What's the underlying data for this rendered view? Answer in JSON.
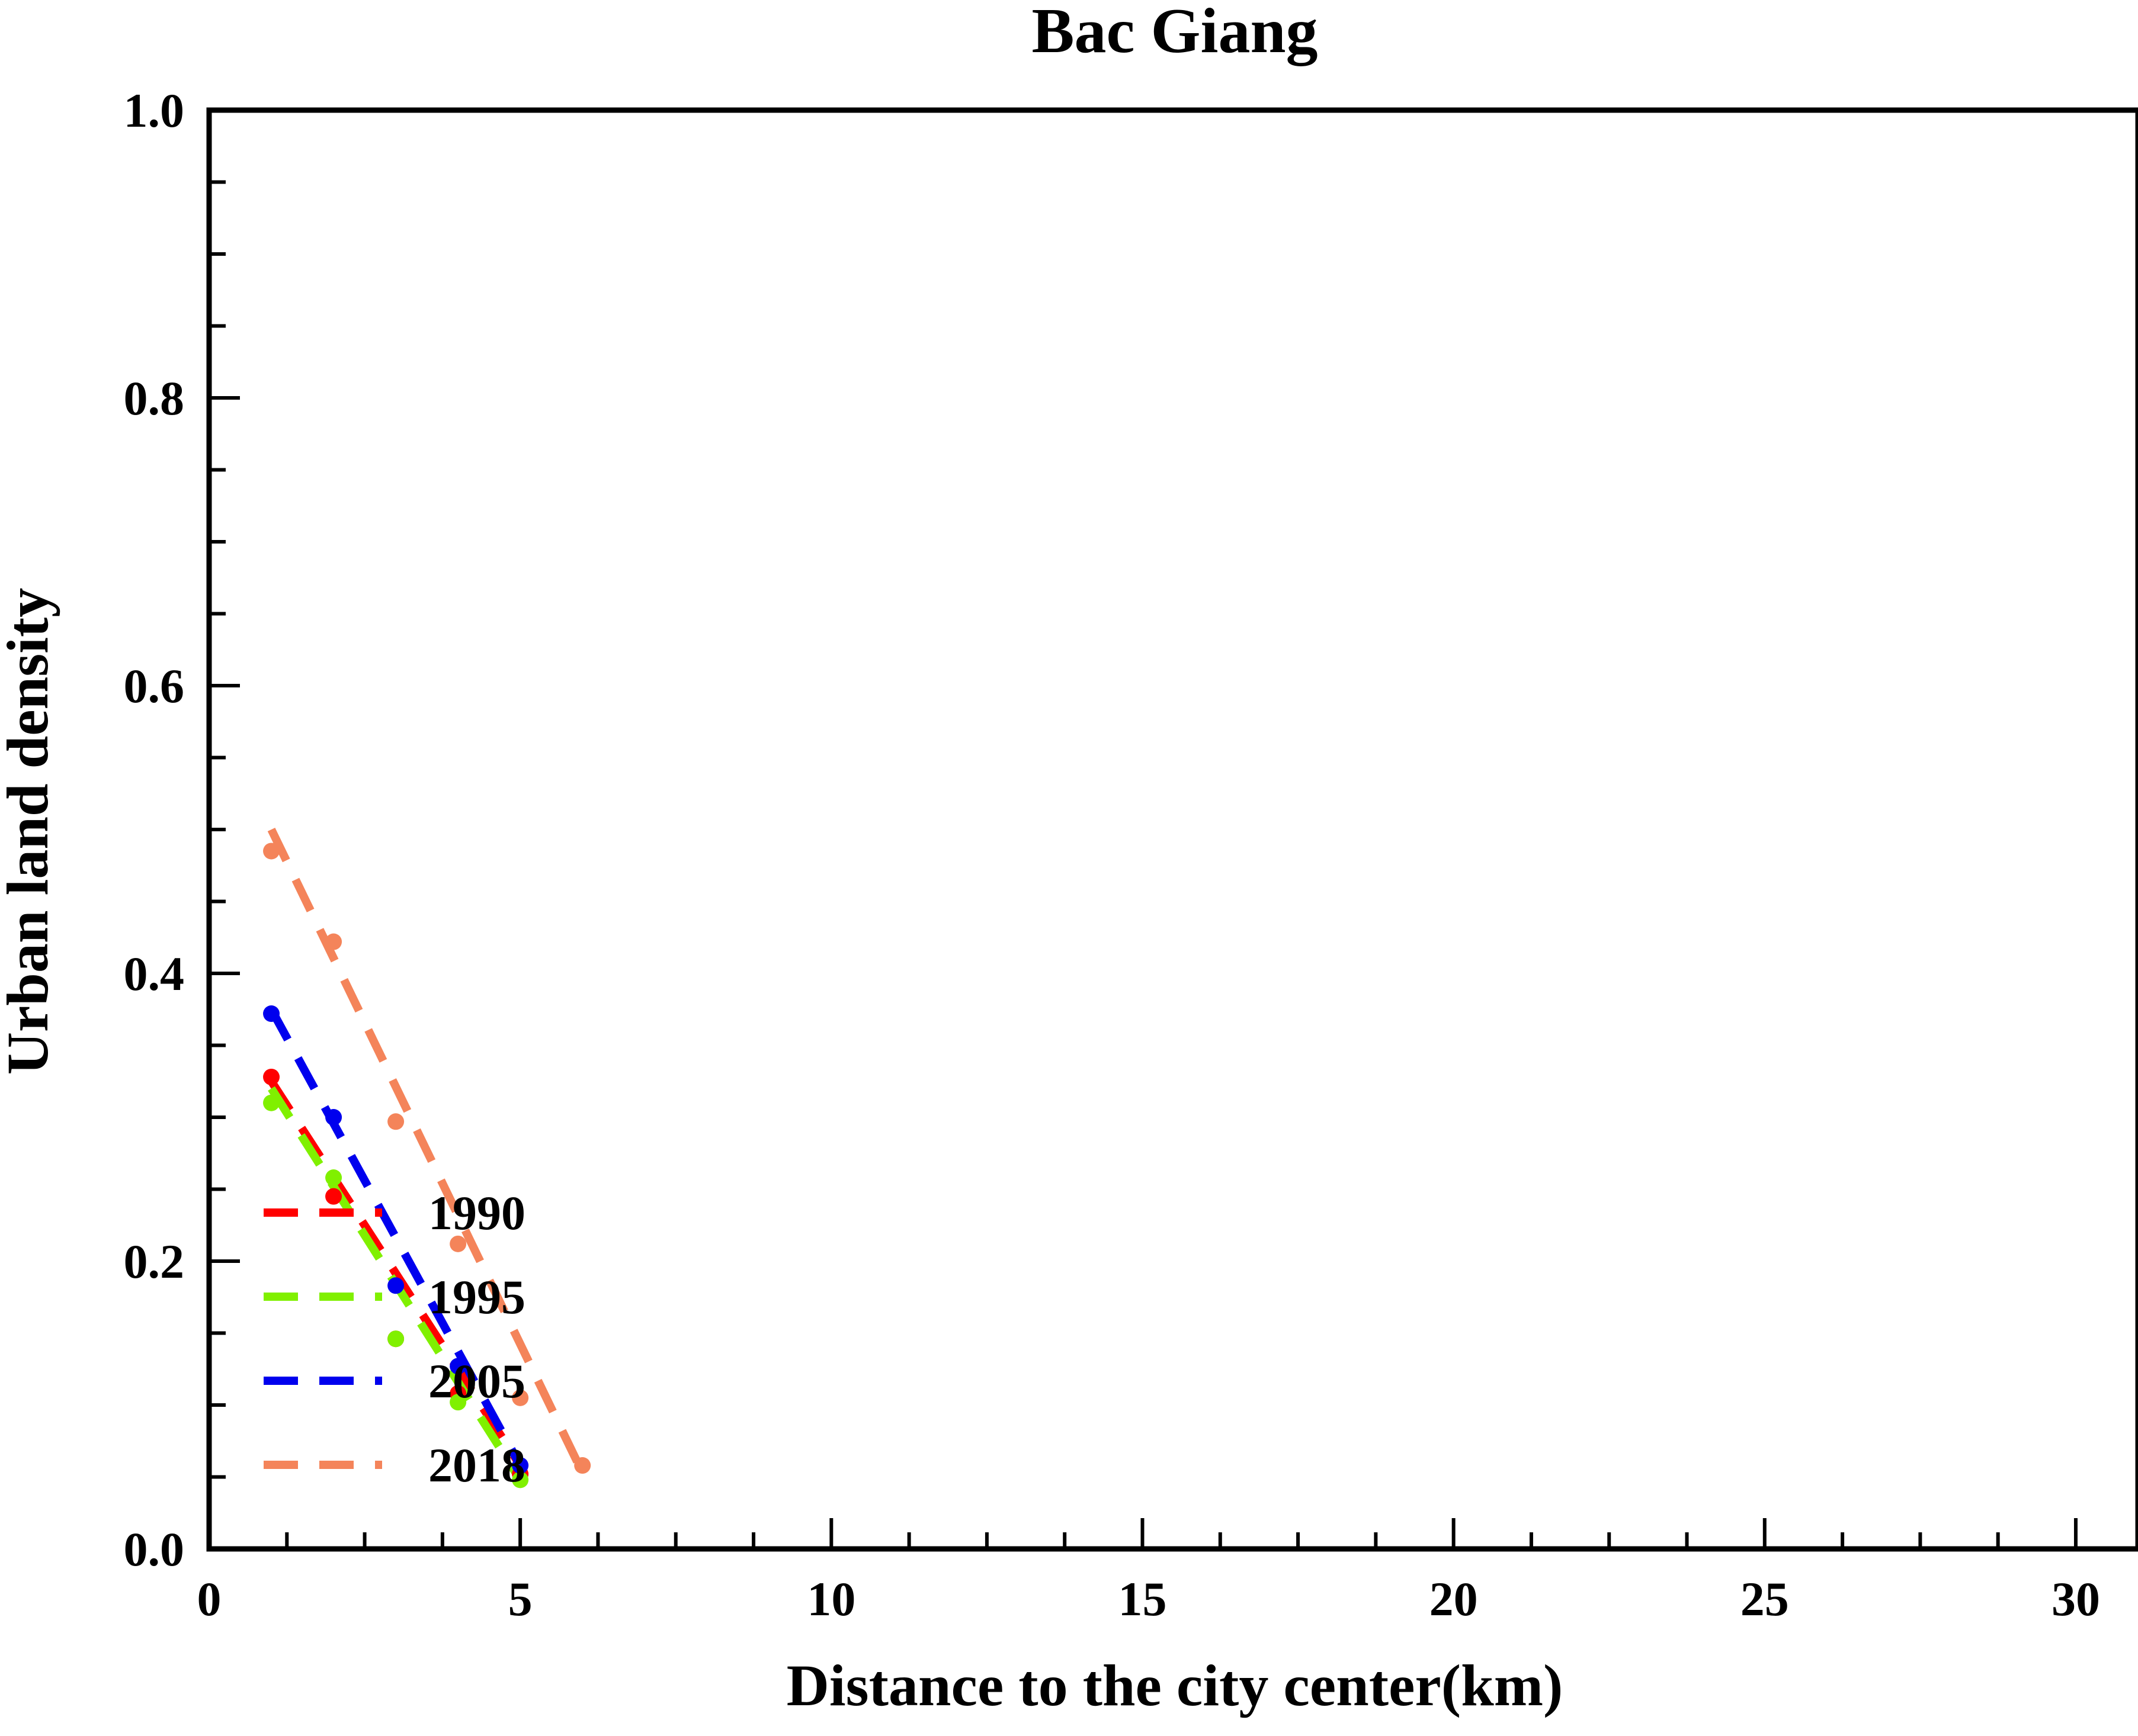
{
  "chart_data": {
    "type": "scatter",
    "title": "Bac Giang",
    "xlabel": "Distance to the city center(km)",
    "ylabel": "Urban land density",
    "xlim": [
      0,
      31
    ],
    "ylim": [
      0,
      1.0
    ],
    "x_ticks": [
      "0",
      "5",
      "10",
      "15",
      "20",
      "25",
      "30"
    ],
    "y_ticks": [
      "0.0",
      "0.2",
      "0.4",
      "0.6",
      "0.8",
      "1.0"
    ],
    "legend_position": "lower-left",
    "series": [
      {
        "name": "1990",
        "color": "#ff0000",
        "points": [
          {
            "x": 1,
            "y": 0.328
          },
          {
            "x": 2,
            "y": 0.245
          },
          {
            "x": 3,
            "y": 0.146
          },
          {
            "x": 4,
            "y": 0.108
          },
          {
            "x": 5,
            "y": 0.052
          }
        ],
        "fit": [
          [
            1,
            0.325
          ],
          [
            5,
            0.058
          ]
        ]
      },
      {
        "name": "1995",
        "color": "#80f000",
        "points": [
          {
            "x": 1,
            "y": 0.31
          },
          {
            "x": 2,
            "y": 0.258
          },
          {
            "x": 3,
            "y": 0.146
          },
          {
            "x": 4,
            "y": 0.102
          },
          {
            "x": 5,
            "y": 0.048
          }
        ],
        "fit": [
          [
            1,
            0.32
          ],
          [
            5,
            0.048
          ]
        ]
      },
      {
        "name": "2005",
        "color": "#0000ee",
        "points": [
          {
            "x": 1,
            "y": 0.372
          },
          {
            "x": 2,
            "y": 0.3
          },
          {
            "x": 3,
            "y": 0.183
          },
          {
            "x": 4,
            "y": 0.127
          },
          {
            "x": 5,
            "y": 0.058
          }
        ],
        "fit": [
          [
            1,
            0.375
          ],
          [
            5,
            0.058
          ]
        ]
      },
      {
        "name": "2018",
        "color": "#f4845a",
        "points": [
          {
            "x": 1,
            "y": 0.485
          },
          {
            "x": 2,
            "y": 0.422
          },
          {
            "x": 3,
            "y": 0.297
          },
          {
            "x": 4,
            "y": 0.212
          },
          {
            "x": 5,
            "y": 0.105
          },
          {
            "x": 6,
            "y": 0.058
          }
        ],
        "fit": [
          [
            1,
            0.5
          ],
          [
            6,
            0.053
          ]
        ]
      }
    ]
  }
}
